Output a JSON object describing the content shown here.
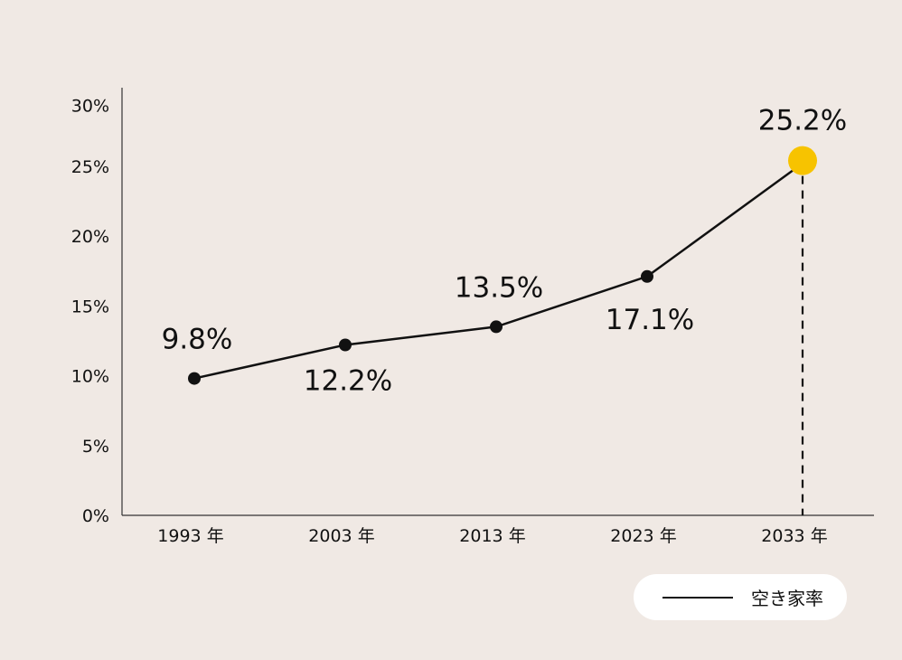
{
  "chart_data": {
    "type": "line",
    "categories": [
      "1993 年",
      "2003 年",
      "2013 年",
      "2023 年",
      "2033 年"
    ],
    "series": [
      {
        "name": "空き家率",
        "values": [
          9.8,
          12.2,
          13.5,
          17.1,
          25.2
        ]
      }
    ],
    "data_labels": [
      "9.8%",
      "12.2%",
      "13.5%",
      "17.1%",
      "25.2%"
    ],
    "ylim": [
      0,
      30
    ],
    "yticks": [
      0,
      5,
      10,
      15,
      20,
      25,
      30
    ],
    "ytick_labels": [
      "0%",
      "5%",
      "10%",
      "15%",
      "20%",
      "25%",
      "30%"
    ],
    "legend": {
      "label": "空き家率",
      "position": "bottom-right"
    },
    "highlight": {
      "category": "2033 年",
      "value": 25.2,
      "color": "#f7c300"
    },
    "line_color": "#111111",
    "background": "#f0e9e4"
  }
}
